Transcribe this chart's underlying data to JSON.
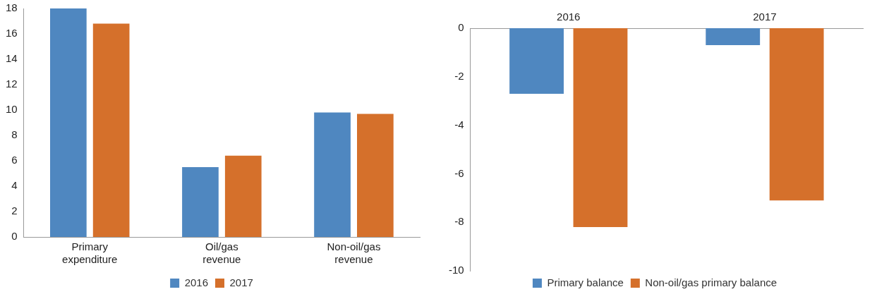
{
  "chart_data": [
    {
      "type": "bar",
      "categories": [
        "Primary expenditure",
        "Oil/gas revenue",
        "Non-oil/gas revenue"
      ],
      "series": [
        {
          "name": "2016",
          "color": "#4f87c0",
          "values": [
            18,
            5.5,
            9.8
          ]
        },
        {
          "name": "2017",
          "color": "#d5702b",
          "values": [
            16.8,
            6.4,
            9.7
          ]
        }
      ],
      "ylim": [
        0,
        18
      ],
      "yticks": [
        0,
        2,
        4,
        6,
        8,
        10,
        12,
        14,
        16,
        18
      ],
      "grid": false,
      "legend": "bottom"
    },
    {
      "type": "bar",
      "categories": [
        "2016",
        "2017"
      ],
      "series": [
        {
          "name": "Primary balance",
          "color": "#4f87c0",
          "values": [
            -2.7,
            -0.7
          ]
        },
        {
          "name": "Non-oil/gas primary balance",
          "color": "#d5702b",
          "values": [
            -8.2,
            -7.1
          ]
        }
      ],
      "ylim": [
        -10,
        0
      ],
      "yticks": [
        -10,
        -8,
        -6,
        -4,
        -2,
        0
      ],
      "grid": false,
      "legend": "bottom"
    }
  ]
}
